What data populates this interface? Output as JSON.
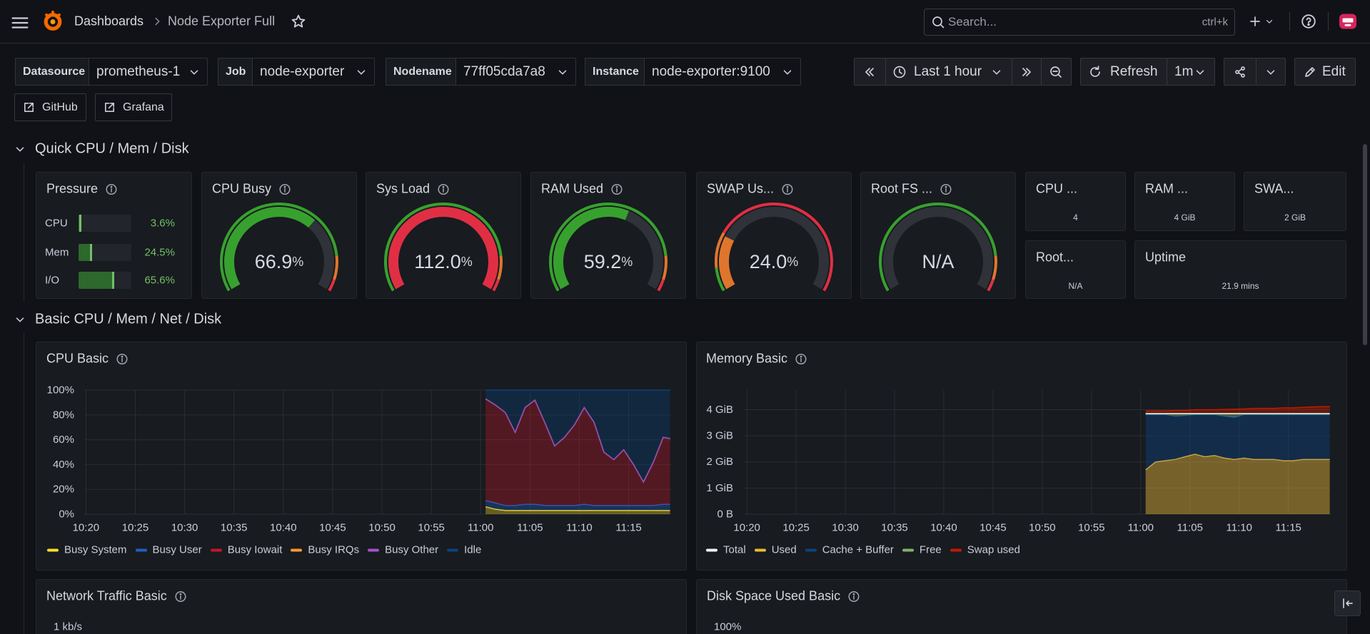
{
  "topbar": {
    "breadcrumb": [
      "Dashboards",
      "Node Exporter Full"
    ],
    "search": "Search...",
    "shortcut": "ctrl+k"
  },
  "variables": [
    {
      "label": "Datasource",
      "value": "prometheus-1"
    },
    {
      "label": "Job",
      "value": "node-exporter"
    },
    {
      "label": "Nodename",
      "value": "77ff05cda7a8"
    },
    {
      "label": "Instance",
      "value": "node-exporter:9100"
    }
  ],
  "time_controls": {
    "range": "Last 1 hour",
    "refresh": "Refresh",
    "interval": "1m",
    "edit": "Edit"
  },
  "links": [
    "GitHub",
    "Grafana"
  ],
  "rows": [
    "Quick CPU / Mem / Disk",
    "Basic CPU / Mem / Net / Disk"
  ],
  "pressure": {
    "title": "Pressure",
    "max": 100,
    "color": "#37a12e",
    "items": [
      {
        "label": "CPU",
        "value": 3.6,
        "value_label": "3.6%"
      },
      {
        "label": "Mem",
        "value": 24.5,
        "value_label": "24.5%"
      },
      {
        "label": "I/O",
        "value": 65.6,
        "value_label": "65.6%"
      }
    ]
  },
  "gauges": [
    {
      "title": "CPU Busy",
      "value": 66.9,
      "value_label": "66.9",
      "unit": "%",
      "max": 100,
      "thresholds": [
        {
          "value": 0,
          "color": "#37a12e"
        },
        {
          "value": 85,
          "color": "#e0752d"
        },
        {
          "value": 95,
          "color": "#e02f44"
        }
      ]
    },
    {
      "title": "Sys Load",
      "value": 112.0,
      "value_label": "112.0",
      "unit": "%",
      "max": 100,
      "thresholds": [
        {
          "value": 0,
          "color": "#37a12e"
        },
        {
          "value": 85,
          "color": "#e0752d"
        },
        {
          "value": 95,
          "color": "#e02f44"
        }
      ]
    },
    {
      "title": "RAM Used",
      "value": 59.2,
      "value_label": "59.2",
      "unit": "%",
      "max": 100,
      "thresholds": [
        {
          "value": 0,
          "color": "#37a12e"
        },
        {
          "value": 85,
          "color": "#e0752d"
        },
        {
          "value": 95,
          "color": "#e02f44"
        }
      ]
    },
    {
      "title": "SWAP Us...",
      "value": 24.0,
      "value_label": "24.0",
      "unit": "%",
      "max": 100,
      "thresholds": [
        {
          "value": 0,
          "color": "#37a12e"
        },
        {
          "value": 10,
          "color": "#e0752d"
        },
        {
          "value": 25,
          "color": "#e02f44"
        }
      ]
    },
    {
      "title": "Root FS ...",
      "value": null,
      "value_label": "N/A",
      "max": 100,
      "thresholds": [
        {
          "value": 0,
          "color": "#37a12e"
        },
        {
          "value": 85,
          "color": "#e0752d"
        },
        {
          "value": 95,
          "color": "#e02f44"
        }
      ]
    }
  ],
  "stats": [
    {
      "title": "CPU ...",
      "value": "4"
    },
    {
      "title": "RAM ...",
      "value": "4 GiB"
    },
    {
      "title": "SWA...",
      "value": "2 GiB"
    },
    {
      "title": "Root...",
      "value": "N/A"
    },
    {
      "title": "Uptime",
      "value": "21.9 mins"
    }
  ],
  "charts": {
    "cpu_basic": {
      "type": "timeseries",
      "title": "CPU Basic",
      "stacked": true,
      "fill_opacity": 0.35,
      "grid": true,
      "xlim": [
        619.9,
        679.3
      ],
      "xticks": [
        {
          "value": 620,
          "label": "10:20"
        },
        {
          "value": 625,
          "label": "10:25"
        },
        {
          "value": 630,
          "label": "10:30"
        },
        {
          "value": 635,
          "label": "10:35"
        },
        {
          "value": 640,
          "label": "10:40"
        },
        {
          "value": 645,
          "label": "10:45"
        },
        {
          "value": 650,
          "label": "10:50"
        },
        {
          "value": 655,
          "label": "10:55"
        },
        {
          "value": 660,
          "label": "11:00"
        },
        {
          "value": 665,
          "label": "11:05"
        },
        {
          "value": 670,
          "label": "11:10"
        },
        {
          "value": 675,
          "label": "11:15"
        }
      ],
      "ylim": [
        0,
        100
      ],
      "yticks": [
        {
          "value": 0,
          "label": "0%"
        },
        {
          "value": 20,
          "label": "20%"
        },
        {
          "value": 40,
          "label": "40%"
        },
        {
          "value": 60,
          "label": "60%"
        },
        {
          "value": 80,
          "label": "80%"
        },
        {
          "value": 100,
          "label": "100%"
        }
      ],
      "x": [
        660.5,
        661.5,
        662.5,
        663.5,
        664.5,
        665.5,
        666.5,
        667.5,
        668.5,
        669.5,
        670.5,
        671.5,
        672.5,
        673.5,
        674.5,
        675.5,
        676.5,
        677.5,
        678.5,
        679.2
      ],
      "series": [
        {
          "name": "Busy System",
          "color": "#fade2a",
          "stack": true,
          "values": [
            6,
            4,
            3,
            3,
            3,
            3,
            3,
            3,
            3,
            3,
            3,
            3,
            3,
            3,
            3,
            3,
            3,
            3,
            3,
            3
          ]
        },
        {
          "name": "Busy User",
          "color": "#1f60c4",
          "stack": true,
          "values": [
            5,
            5,
            4,
            4,
            5,
            5,
            4,
            4,
            4,
            4,
            5,
            4,
            4,
            4,
            4,
            4,
            4,
            4,
            5,
            5
          ]
        },
        {
          "name": "Busy Iowait",
          "color": "#c4162a",
          "stack": true,
          "values": [
            82,
            79,
            75,
            59,
            78,
            84,
            67,
            48,
            55,
            65,
            78,
            67,
            43,
            37,
            45,
            33,
            19,
            35,
            54,
            53
          ]
        },
        {
          "name": "Busy IRQs",
          "color": "#ff9830",
          "stack": true,
          "values": [
            0,
            0,
            0,
            0,
            0,
            0,
            0,
            0,
            0,
            0,
            0,
            0,
            0,
            0,
            0,
            0,
            0,
            0,
            0,
            0
          ]
        },
        {
          "name": "Busy Other",
          "color": "#a352cc",
          "stack": true,
          "values": [
            0,
            0,
            0,
            0,
            0,
            0,
            0,
            0,
            0,
            0,
            0,
            0,
            0,
            0,
            0,
            0,
            0,
            0,
            0,
            0
          ]
        },
        {
          "name": "Idle",
          "color": "#0a437c",
          "stack": true,
          "values": [
            7,
            12,
            18,
            34,
            14,
            8,
            26,
            45,
            38,
            28,
            14,
            26,
            50,
            56,
            48,
            60,
            74,
            58,
            38,
            39
          ]
        }
      ]
    },
    "memory_basic": {
      "type": "timeseries",
      "title": "Memory Basic",
      "stacked": true,
      "fill_opacity": 0.45,
      "grid": true,
      "xlim": [
        619.7,
        679.3
      ],
      "xticks": [
        {
          "value": 620,
          "label": "10:20"
        },
        {
          "value": 625,
          "label": "10:25"
        },
        {
          "value": 630,
          "label": "10:30"
        },
        {
          "value": 635,
          "label": "10:35"
        },
        {
          "value": 640,
          "label": "10:40"
        },
        {
          "value": 645,
          "label": "10:45"
        },
        {
          "value": 650,
          "label": "10:50"
        },
        {
          "value": 655,
          "label": "10:55"
        },
        {
          "value": 660,
          "label": "11:00"
        },
        {
          "value": 665,
          "label": "11:05"
        },
        {
          "value": 670,
          "label": "11:10"
        },
        {
          "value": 675,
          "label": "11:15"
        }
      ],
      "ylim": [
        0,
        4.75
      ],
      "yticks": [
        {
          "value": 0,
          "label": "0 B"
        },
        {
          "value": 1,
          "label": "1 GiB"
        },
        {
          "value": 2,
          "label": "2 GiB"
        },
        {
          "value": 3,
          "label": "3 GiB"
        },
        {
          "value": 4,
          "label": "4 GiB"
        }
      ],
      "x": [
        660.5,
        661.5,
        662.5,
        663.5,
        664.5,
        665.5,
        666.5,
        667.5,
        668.5,
        669.5,
        670.5,
        671.5,
        672.5,
        673.5,
        674.5,
        675.5,
        676.5,
        677.5,
        678.5,
        679.2
      ],
      "series": [
        {
          "name": "Total",
          "color": "#f2f2f2",
          "stack": false,
          "values": [
            3.85,
            3.85,
            3.85,
            3.85,
            3.85,
            3.85,
            3.85,
            3.85,
            3.85,
            3.85,
            3.85,
            3.85,
            3.85,
            3.85,
            3.85,
            3.85,
            3.85,
            3.85,
            3.85,
            3.85
          ]
        },
        {
          "name": "Used",
          "color": "#eab839",
          "stack": true,
          "values": [
            1.7,
            2.0,
            2.05,
            2.1,
            2.2,
            2.3,
            2.2,
            2.25,
            2.15,
            2.1,
            2.15,
            2.1,
            2.1,
            2.1,
            2.05,
            2.05,
            2.1,
            2.1,
            2.1,
            2.1
          ]
        },
        {
          "name": "Cache + Buffer",
          "color": "#0a437c",
          "stack": true,
          "values": [
            2.1,
            1.8,
            1.75,
            1.65,
            1.57,
            1.5,
            1.6,
            1.55,
            1.6,
            1.6,
            1.65,
            1.7,
            1.7,
            1.7,
            1.75,
            1.75,
            1.7,
            1.7,
            1.7,
            1.7
          ]
        },
        {
          "name": "Free",
          "color": "#7eb26d",
          "stack": true,
          "values": [
            0.05,
            0.05,
            0.05,
            0.1,
            0.08,
            0.05,
            0.05,
            0.05,
            0.1,
            0.15,
            0.05,
            0.05,
            0.05,
            0.05,
            0.05,
            0.05,
            0.05,
            0.05,
            0.05,
            0.05
          ]
        },
        {
          "name": "Swap used",
          "color": "#bf1b00",
          "stack": true,
          "values": [
            0.1,
            0.1,
            0.1,
            0.12,
            0.12,
            0.15,
            0.15,
            0.15,
            0.16,
            0.17,
            0.18,
            0.2,
            0.2,
            0.2,
            0.22,
            0.22,
            0.24,
            0.26,
            0.27,
            0.27
          ]
        }
      ]
    }
  },
  "bottom_panels": [
    {
      "title": "Network Traffic Basic",
      "axis_label": "1 kb/s"
    },
    {
      "title": "Disk Space Used Basic",
      "axis_label": "100%"
    }
  ]
}
